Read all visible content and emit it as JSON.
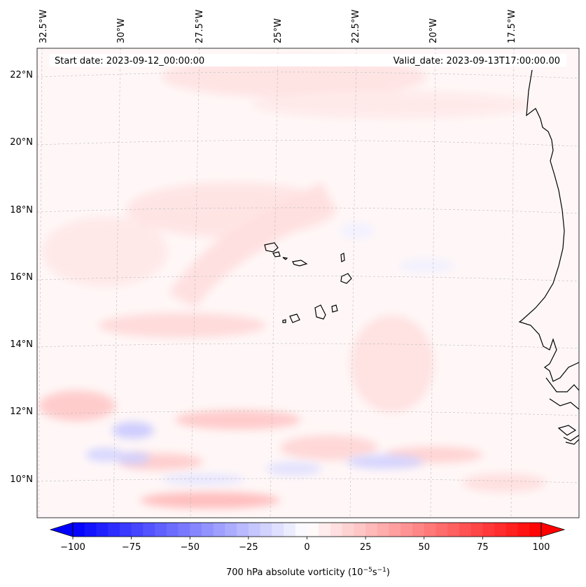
{
  "header": {
    "start_date": "Start date: 2023-09-12_00:00:00",
    "valid_date": "Valid_date: 2023-09-13T17:00:00.00"
  },
  "longitude_labels": [
    "32.5°W",
    "30°W",
    "27.5°W",
    "25°W",
    "22.5°W",
    "20°W",
    "17.5°W"
  ],
  "latitude_labels": [
    "22°N",
    "20°N",
    "18°N",
    "16°N",
    "14°N",
    "12°N",
    "10°N"
  ],
  "colorbar": {
    "ticks": [
      "−100",
      "−75",
      "−50",
      "−25",
      "0",
      "25",
      "50",
      "75",
      "100"
    ],
    "label": "700 hPa absolute vorticity (10",
    "label_exp1": "−5",
    "label_mid": "s",
    "label_exp2": "−1",
    "label_end": ")",
    "vmin": -100,
    "vmax": 100,
    "colors": {
      "negative": "#0000ff",
      "zero": "#ffffff",
      "positive": "#ff0000"
    }
  }
}
